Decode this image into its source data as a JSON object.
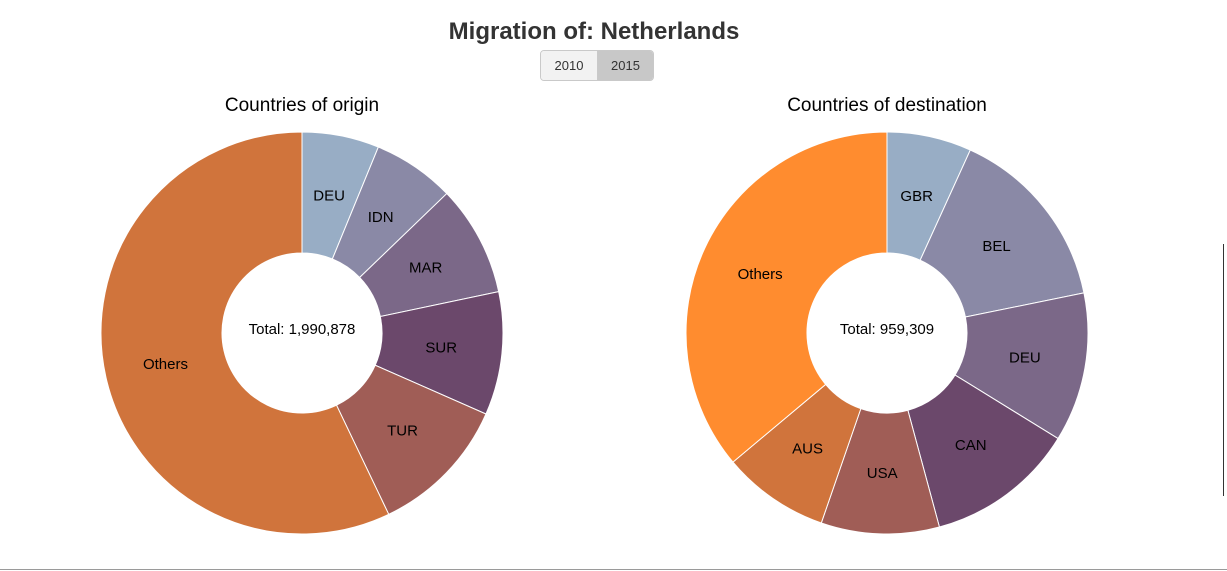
{
  "header": {
    "title": "Migration of: Netherlands"
  },
  "year_toggle": {
    "options": [
      "2010",
      "2015"
    ],
    "selected": "2015"
  },
  "chart_data": [
    {
      "type": "pie",
      "donut": true,
      "title": "Countries of origin",
      "center_text": "Total: 1,990,878",
      "labels": [
        "DEU",
        "IDN",
        "MAR",
        "SUR",
        "TUR",
        "Others"
      ],
      "values": [
        6.2,
        6.6,
        8.9,
        9.9,
        11.3,
        57.1
      ],
      "unit": "percent of total",
      "colors": [
        "#98adc5",
        "#8a89a6",
        "#7b6888",
        "#6b486b",
        "#a05d56",
        "#d0743c"
      ]
    },
    {
      "type": "pie",
      "donut": true,
      "title": "Countries of destination",
      "center_text": "Total: 959,309",
      "labels": [
        "GBR",
        "BEL",
        "DEU",
        "CAN",
        "USA",
        "AUS",
        "Others"
      ],
      "values": [
        6.8,
        15.0,
        12.0,
        12.0,
        9.5,
        8.6,
        36.1
      ],
      "unit": "percent of total",
      "colors": [
        "#98adc5",
        "#8a89a6",
        "#7b6888",
        "#6b486b",
        "#a05d56",
        "#d0743c",
        "#ff8c2f"
      ]
    }
  ]
}
